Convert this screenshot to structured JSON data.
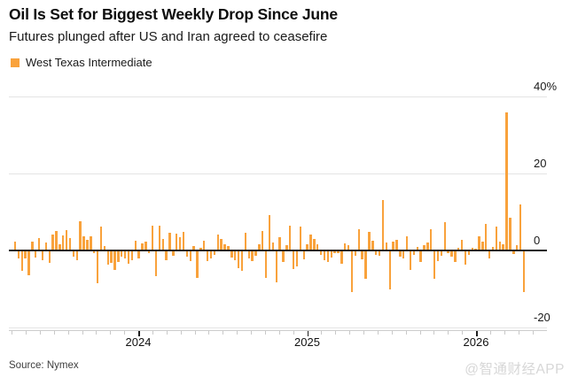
{
  "header": {
    "title": "Oil Is Set for Biggest Weekly Drop Since June",
    "subtitle": "Futures plunged after US and Iran agreed to ceasefire"
  },
  "legend": {
    "label": "West Texas Intermediate",
    "swatch_color": "#F9A23C"
  },
  "footer": {
    "source": "Source: Nymex",
    "watermark": "@智通财经APP"
  },
  "colors": {
    "bar": "#F9A23C",
    "gridline": "#e4e4e4",
    "zero_baseline": "#1f1f1f",
    "axis_line": "#cccccc",
    "text": "#111111",
    "source_text": "#3d3d3d",
    "watermark_text": "#d7d7d7"
  },
  "chart_data": {
    "type": "bar",
    "title": "Oil Is Set for Biggest Weekly Drop Since June",
    "subtitle": "Futures plunged after US and Iran agreed to ceasefire",
    "series_name": "West Texas Intermediate",
    "unit": "percent weekly change",
    "frequency": "weekly",
    "x_range_approx": "Apr 2023 - Apr 2026",
    "x_tick_labels": [
      "2024",
      "2025",
      "2026"
    ],
    "y_tick_labels": [
      "40%",
      "20",
      "0",
      "-20"
    ],
    "y_tick_values": [
      40,
      20,
      0,
      -20
    ],
    "ylim": [
      -20,
      40
    ],
    "grid": "horizontal",
    "legend_position": "top-left",
    "source": "Nymex",
    "values": [
      2.4,
      -2.1,
      -5.2,
      -2.0,
      -6.4,
      2.2,
      -1.8,
      3.2,
      -2.6,
      2.0,
      -3.3,
      4.1,
      5.0,
      1.5,
      4.0,
      5.2,
      3.3,
      -1.5,
      -2.5,
      7.5,
      3.7,
      2.7,
      3.7,
      -0.8,
      -8.6,
      6.1,
      1.2,
      -3.6,
      -3.3,
      -5.0,
      -3.1,
      -1.6,
      -2.1,
      -3.5,
      -2.5,
      2.6,
      -2.0,
      1.8,
      2.3,
      -0.8,
      6.4,
      -6.7,
      6.4,
      3.1,
      -2.5,
      4.6,
      -1.4,
      4.3,
      3.5,
      4.8,
      -1.6,
      -2.7,
      1.2,
      -7.1,
      0.8,
      2.6,
      -2.7,
      -2.1,
      -1.2,
      4.1,
      3.0,
      1.7,
      1.1,
      -1.8,
      -2.6,
      -4.6,
      -5.2,
      4.5,
      -2.0,
      -2.7,
      -1.4,
      1.7,
      5.0,
      -7.1,
      9.2,
      2.0,
      -8.2,
      3.5,
      -3.1,
      1.4,
      6.4,
      -4.8,
      -4.1,
      6.1,
      -2.3,
      1.7,
      4.1,
      3.0,
      1.7,
      -1.1,
      -2.6,
      -3.1,
      -1.8,
      -0.8,
      -0.8,
      -3.5,
      1.8,
      1.4,
      -10.7,
      -1.4,
      5.6,
      -2.3,
      -7.3,
      4.8,
      2.6,
      -1.1,
      -1.4,
      13.2,
      2.0,
      -10.2,
      2.4,
      2.7,
      -1.6,
      -2.1,
      3.6,
      -5.0,
      -1.1,
      1.0,
      -3.1,
      1.4,
      2.0,
      5.5,
      -7.3,
      -2.7,
      -1.4,
      7.3,
      -0.8,
      -1.6,
      -2.9,
      0.6,
      2.8,
      -3.7,
      -1.1,
      0.8,
      0.5,
      3.6,
      2.2,
      6.9,
      -2.0,
      1.0,
      6.1,
      2.3,
      1.6,
      35.9,
      8.6,
      -0.9,
      1.4,
      12.0,
      -10.9
    ]
  }
}
